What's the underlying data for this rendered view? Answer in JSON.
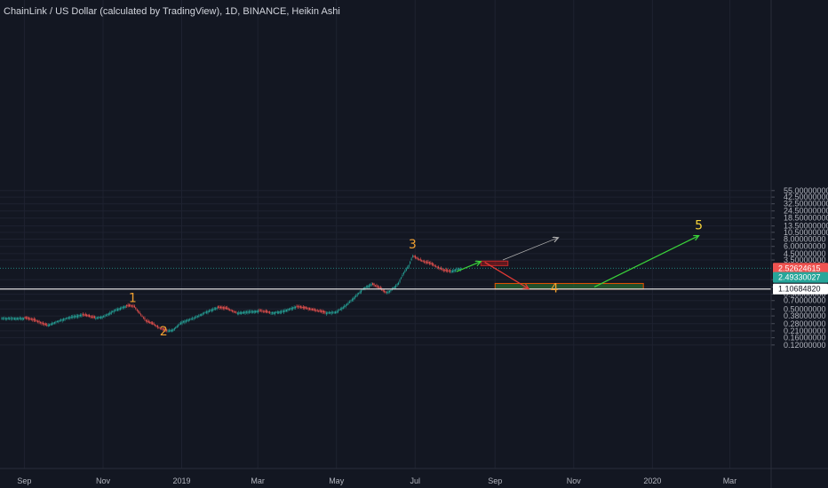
{
  "title": "ChainLink / US Dollar (calculated by TradingView), 1D, BINANCE, Heikin Ashi",
  "colors": {
    "background": "#131722",
    "grid": "#1e2230",
    "up_candle": "#26a69a",
    "down_candle": "#ef5350",
    "wave_label": "#f0a030",
    "wave5_label": "#f5d33a",
    "green_arrow": "#3ad33a",
    "red_arrow": "#e53935",
    "grey_arrow": "#b0b0b0",
    "current_badge": "#ef5350",
    "prev_badge": "#26a69a",
    "support_badge": "#ffffff"
  },
  "chart_data": {
    "type": "candlestick",
    "scale": "log",
    "y_ticks": [
      "55.00000000",
      "42.50000000",
      "32.50000000",
      "24.50000000",
      "18.50000000",
      "13.50000000",
      "10.50000000",
      "8.00000000",
      "6.00000000",
      "4.50000000",
      "3.50000000",
      "1.60000000",
      "1.20000000",
      "0.90000000",
      "0.70000000",
      "0.50000000",
      "0.38000000",
      "0.28000000",
      "0.21000000",
      "0.16000000",
      "0.12000000"
    ],
    "x_ticks": [
      "Sep",
      "Nov",
      "2019",
      "Mar",
      "May",
      "Jul",
      "Sep",
      "Nov",
      "2020",
      "Mar"
    ],
    "price_badges": [
      {
        "label": "2.52624615",
        "role": "current"
      },
      {
        "label": "2.49330027",
        "role": "previous"
      },
      {
        "label": "1.10684820",
        "role": "support"
      }
    ],
    "wave_labels": [
      "1",
      "2",
      "3",
      "4",
      "5"
    ],
    "series_path": [
      [
        "2018-09-01",
        0.35
      ],
      [
        "2018-09-10",
        0.31
      ],
      [
        "2018-09-18",
        0.26
      ],
      [
        "2018-09-25",
        0.3
      ],
      [
        "2018-10-05",
        0.36
      ],
      [
        "2018-10-15",
        0.4
      ],
      [
        "2018-10-25",
        0.35
      ],
      [
        "2018-11-02",
        0.38
      ],
      [
        "2018-11-10",
        0.48
      ],
      [
        "2018-11-18",
        0.56
      ],
      [
        "2018-11-25",
        0.55
      ],
      [
        "2018-11-30",
        0.4
      ],
      [
        "2018-12-05",
        0.3
      ],
      [
        "2018-12-10",
        0.27
      ],
      [
        "2018-12-15",
        0.23
      ],
      [
        "2018-12-20",
        0.21
      ],
      [
        "2018-12-25",
        0.22
      ],
      [
        "2019-01-01",
        0.3
      ],
      [
        "2019-01-10",
        0.35
      ],
      [
        "2019-01-20",
        0.45
      ],
      [
        "2019-01-28",
        0.53
      ],
      [
        "2019-02-05",
        0.5
      ],
      [
        "2019-02-12",
        0.43
      ],
      [
        "2019-02-20",
        0.45
      ],
      [
        "2019-03-01",
        0.47
      ],
      [
        "2019-03-10",
        0.43
      ],
      [
        "2019-03-20",
        0.46
      ],
      [
        "2019-03-30",
        0.55
      ],
      [
        "2019-04-05",
        0.52
      ],
      [
        "2019-04-12",
        0.48
      ],
      [
        "2019-04-22",
        0.43
      ],
      [
        "2019-05-01",
        0.45
      ],
      [
        "2019-05-08",
        0.58
      ],
      [
        "2019-05-15",
        0.8
      ],
      [
        "2019-05-22",
        1.15
      ],
      [
        "2019-05-28",
        1.35
      ],
      [
        "2019-06-03",
        1.15
      ],
      [
        "2019-06-08",
        0.95
      ],
      [
        "2019-06-12",
        1.05
      ],
      [
        "2019-06-18",
        1.4
      ],
      [
        "2019-06-22",
        2.1
      ],
      [
        "2019-06-26",
        2.8
      ],
      [
        "2019-06-29",
        4.1
      ],
      [
        "2019-07-03",
        3.6
      ],
      [
        "2019-07-08",
        3.2
      ],
      [
        "2019-07-13",
        3.0
      ],
      [
        "2019-07-18",
        2.6
      ],
      [
        "2019-07-23",
        2.3
      ],
      [
        "2019-07-28",
        2.2
      ],
      [
        "2019-08-02",
        2.45
      ],
      [
        "2019-08-06",
        2.52
      ]
    ],
    "projections": [
      {
        "name": "green-up-1",
        "from": [
          "2019-08-02",
          2.2
        ],
        "to": [
          "2019-08-21",
          3.3
        ]
      },
      {
        "name": "grey-up",
        "from": [
          "2019-09-07",
          3.5
        ],
        "to": [
          "2019-10-20",
          8.5
        ]
      },
      {
        "name": "red-down",
        "from": [
          "2019-08-24",
          3.2
        ],
        "to": [
          "2019-09-27",
          1.12
        ]
      },
      {
        "name": "green-up-2",
        "from": [
          "2019-11-17",
          1.2
        ],
        "to": [
          "2020-02-06",
          9.2
        ]
      }
    ],
    "zones": [
      {
        "name": "red-resistance-zone",
        "x": [
          "2019-08-21",
          "2019-09-11"
        ],
        "y": [
          3.35,
          2.8
        ],
        "kind": "resistance"
      },
      {
        "name": "green-support-zone",
        "x": [
          "2019-09-01",
          "2019-12-25"
        ],
        "y": [
          1.38,
          1.1
        ],
        "kind": "support"
      }
    ],
    "horizontal_lines": [
      {
        "name": "support-line",
        "y": 1.1068482,
        "style": "solid"
      },
      {
        "name": "current-price-line",
        "y": 2.52624615,
        "style": "dotted"
      }
    ]
  }
}
